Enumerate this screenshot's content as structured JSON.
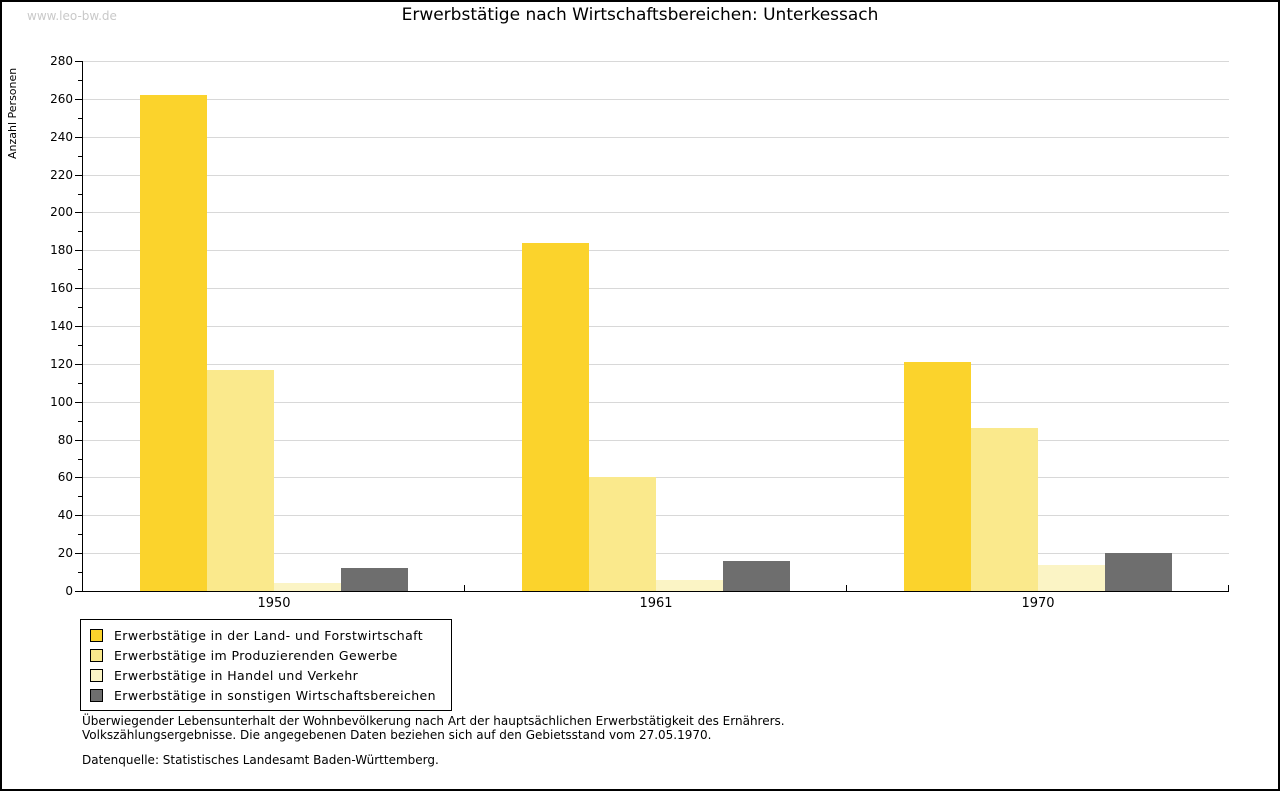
{
  "watermark": "www.leo-bw.de",
  "title": "Erwerbstätige nach Wirtschaftsbereichen: Unterkessach",
  "chart_data": {
    "type": "bar",
    "title": "Erwerbstätige nach Wirtschaftsbereichen: Unterkessach",
    "xlabel": "",
    "ylabel": "Anzahl Personen",
    "ylim": [
      0,
      280
    ],
    "ytick_step": 20,
    "yminor_step": 10,
    "grid": true,
    "legend_position": "bottom-left",
    "categories": [
      "1950",
      "1961",
      "1970"
    ],
    "series": [
      {
        "name": "Erwerbstätige in der Land- und Forstwirtschaft",
        "color": "#fbd32c",
        "values": [
          262,
          184,
          121
        ]
      },
      {
        "name": "Erwerbstätige im Produzierenden Gewerbe",
        "color": "#fae98c",
        "values": [
          117,
          60,
          86
        ]
      },
      {
        "name": "Erwerbstätige in Handel und Verkehr",
        "color": "#fbf4c5",
        "values": [
          4,
          6,
          14
        ]
      },
      {
        "name": "Erwerbstätige in sonstigen Wirtschaftsbereichen",
        "color": "#6e6e6e",
        "values": [
          12,
          16,
          20
        ]
      }
    ]
  },
  "footer": {
    "line1": "Überwiegender Lebensunterhalt der Wohnbevölkerung nach Art der hauptsächlichen Erwerbstätigkeit des Ernährers.",
    "line2": "Volkszählungsergebnisse. Die angegebenen Daten beziehen sich auf den Gebietsstand vom 27.05.1970.",
    "source": "Datenquelle: Statistisches Landesamt Baden-Württemberg."
  },
  "colors": {
    "grid": "#d8d8d8",
    "axis": "#000000",
    "watermark": "#c9c9c9",
    "background": "#ffffff"
  }
}
